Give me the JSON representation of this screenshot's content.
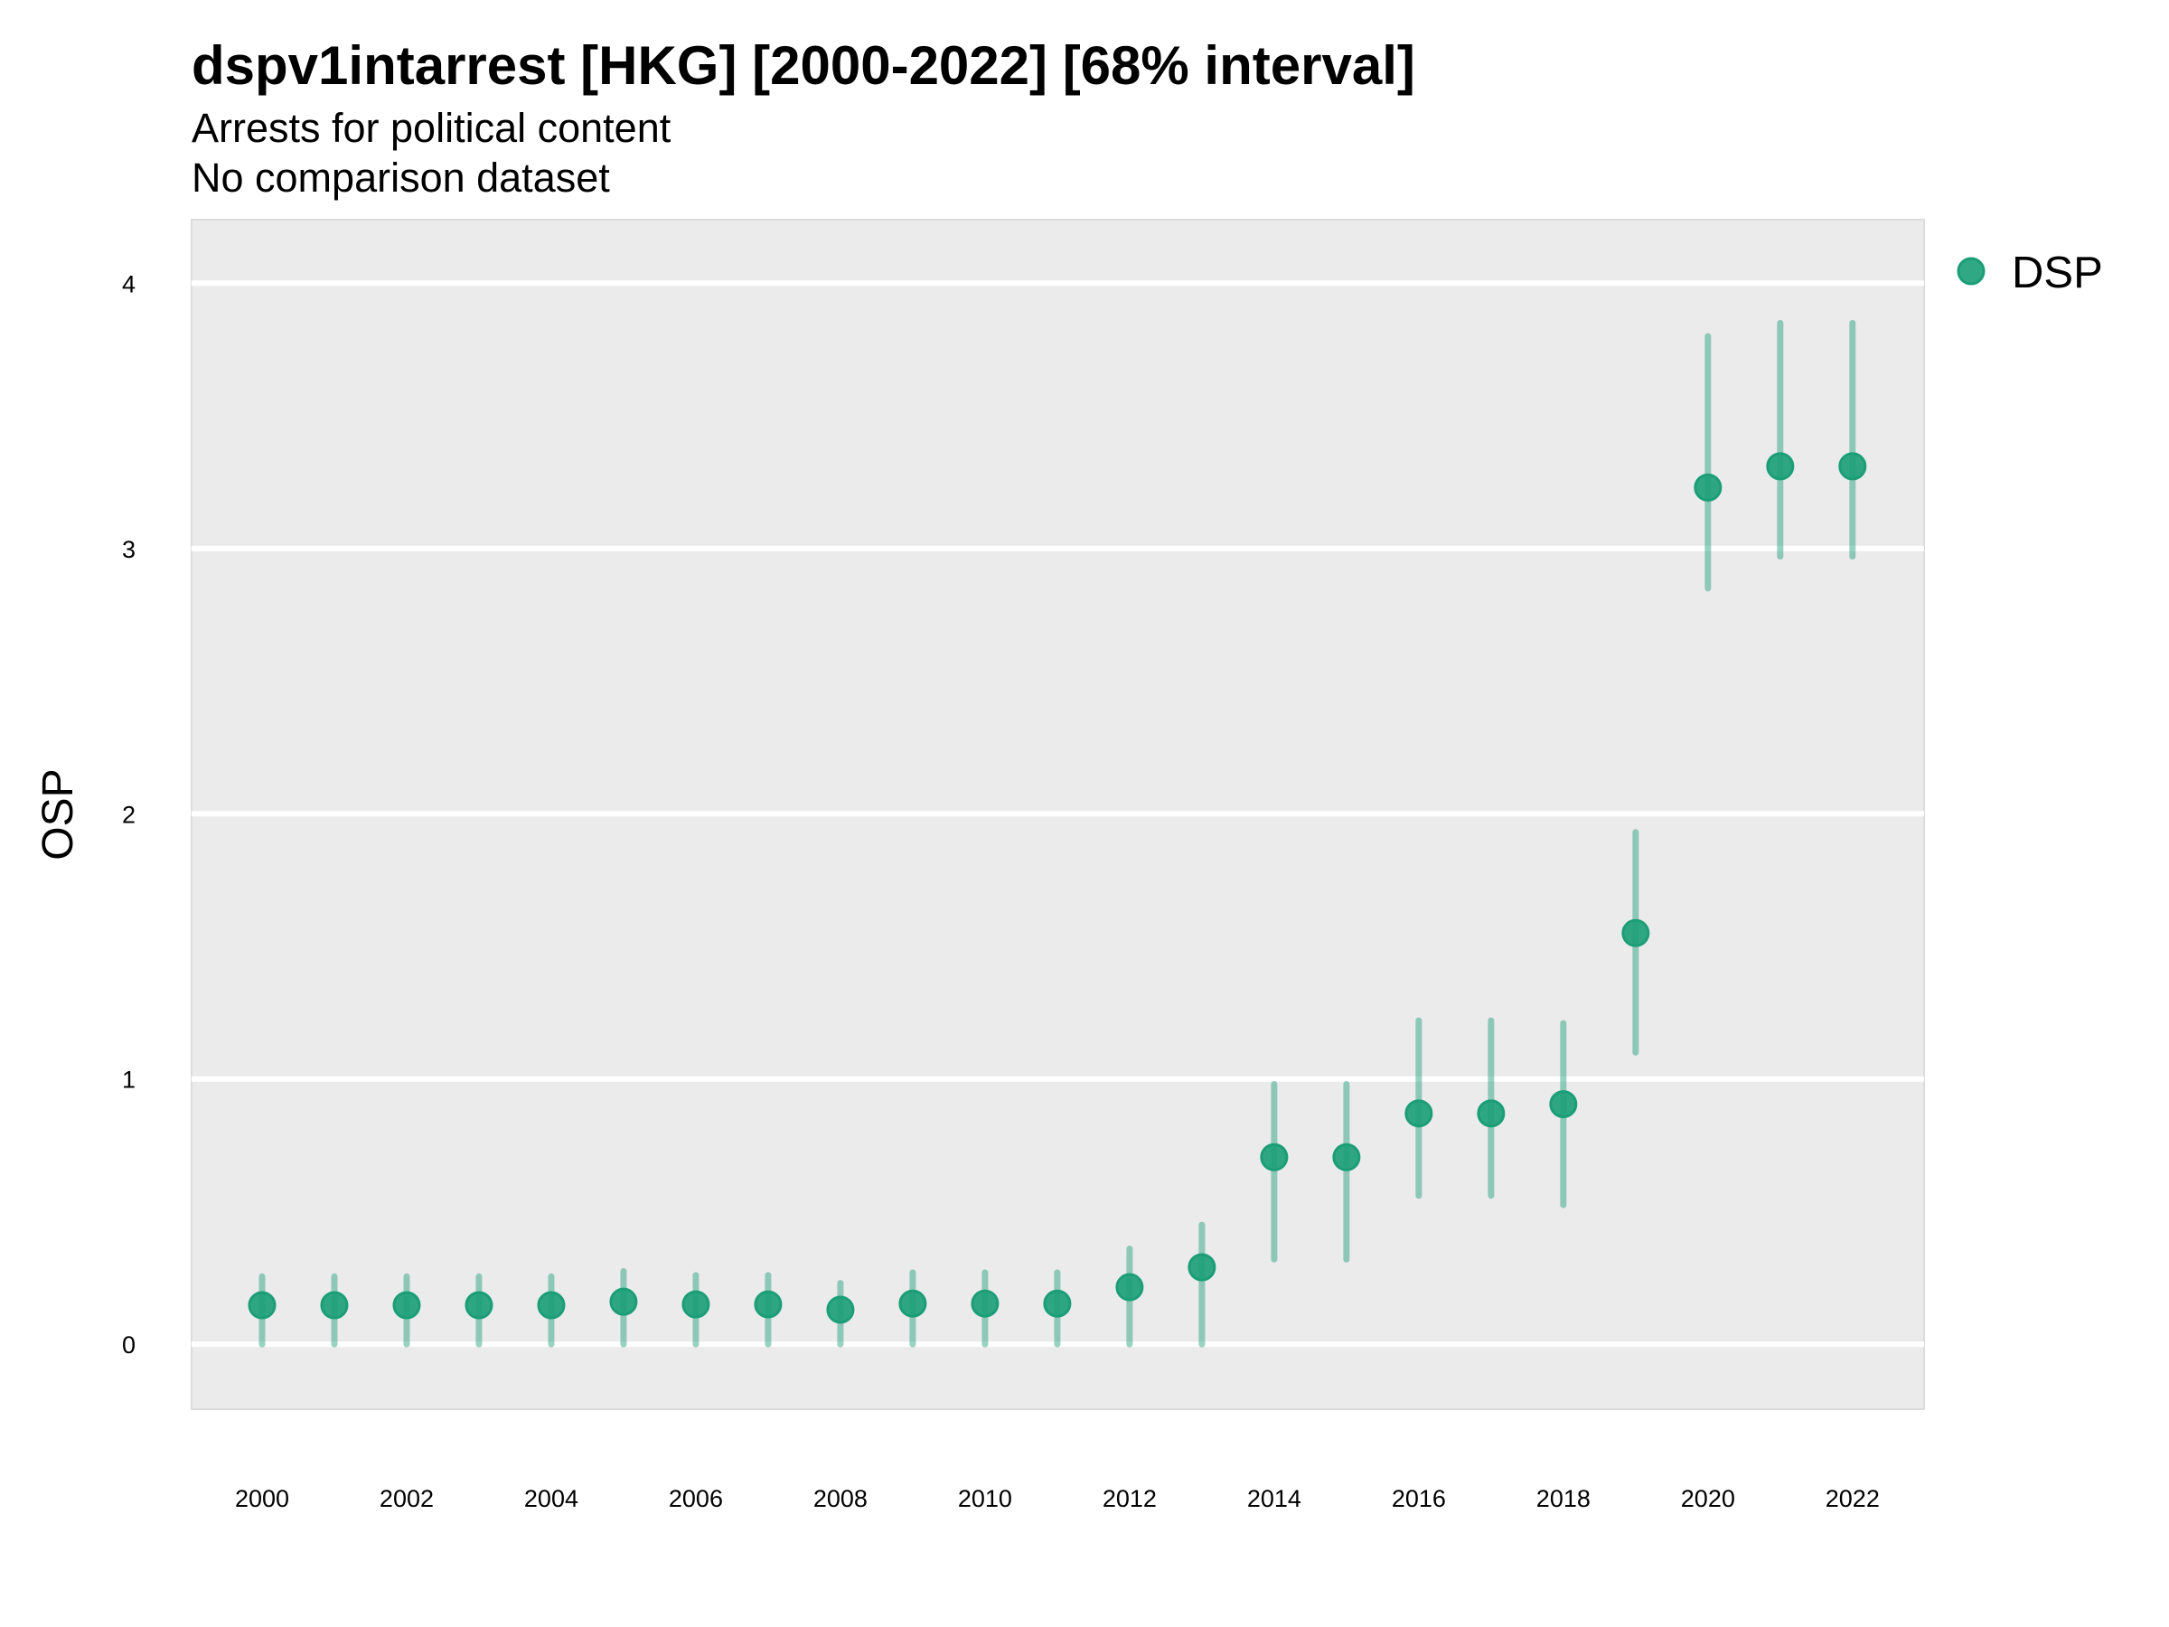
{
  "title": "dspv1intarrest [HKG] [2000-2022] [68% interval]",
  "subtitle": "Arrests for political content",
  "subtitle2": "No comparison dataset",
  "chart_data": {
    "type": "scatter",
    "subtype": "pointrange",
    "title": "dspv1intarrest [HKG] [2000-2022] [68% interval]",
    "subtitle": [
      "Arrests for political content",
      "No comparison dataset"
    ],
    "xlabel": "",
    "ylabel": "OSP",
    "xlim": [
      1999,
      2023
    ],
    "ylim": [
      -0.245,
      4.24
    ],
    "x_ticks": [
      2000,
      2002,
      2004,
      2006,
      2008,
      2010,
      2012,
      2014,
      2016,
      2018,
      2020,
      2022
    ],
    "y_ticks": [
      0,
      1,
      2,
      3,
      4
    ],
    "grid": true,
    "legend": {
      "position": "right-top",
      "entries": [
        "DSP"
      ]
    },
    "colors": {
      "series": "#1b9e77",
      "panel": "#ebebeb",
      "grid": "#ffffff"
    },
    "series": [
      {
        "name": "DSP",
        "x": [
          2000,
          2001,
          2002,
          2003,
          2004,
          2005,
          2006,
          2007,
          2008,
          2009,
          2010,
          2011,
          2012,
          2013,
          2014,
          2015,
          2016,
          2017,
          2018,
          2019,
          2020,
          2021,
          2022
        ],
        "y": [
          0.147,
          0.147,
          0.147,
          0.147,
          0.147,
          0.16,
          0.15,
          0.15,
          0.13,
          0.153,
          0.153,
          0.153,
          0.215,
          0.29,
          0.705,
          0.705,
          0.87,
          0.87,
          0.905,
          1.55,
          3.23,
          3.31,
          3.31
        ],
        "lower": [
          0.0,
          0.0,
          0.0,
          0.0,
          0.0,
          0.0,
          0.0,
          0.0,
          0.0,
          0.0,
          0.0,
          0.0,
          0.0,
          0.0,
          0.32,
          0.32,
          0.56,
          0.56,
          0.525,
          1.1,
          2.85,
          2.97,
          2.97
        ],
        "upper": [
          0.255,
          0.255,
          0.255,
          0.255,
          0.255,
          0.275,
          0.26,
          0.26,
          0.23,
          0.27,
          0.27,
          0.27,
          0.36,
          0.45,
          0.98,
          0.98,
          1.22,
          1.22,
          1.21,
          1.93,
          3.8,
          3.85,
          3.85
        ]
      }
    ]
  }
}
